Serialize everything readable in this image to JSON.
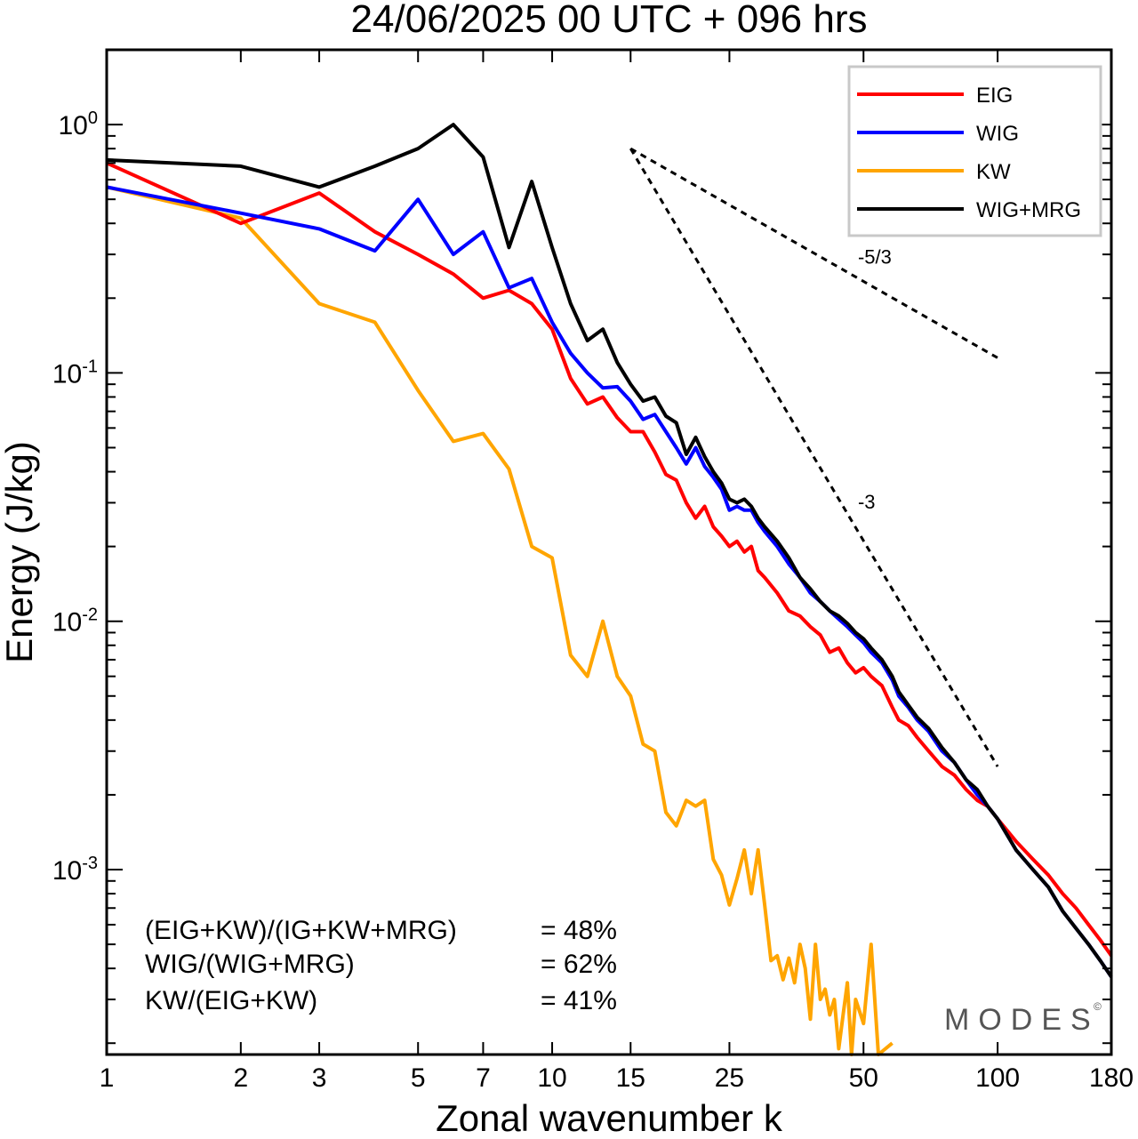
{
  "chart_data": {
    "type": "line",
    "title": "24/06/2025  00 UTC  + 096 hrs",
    "xlabel": "Zonal wavenumber k",
    "ylabel": "Energy (J/kg)",
    "xscale": "log",
    "yscale": "log",
    "xlim": [
      1,
      180
    ],
    "ylim": [
      0.00018,
      2.0
    ],
    "xticks": [
      1,
      2,
      3,
      5,
      7,
      10,
      15,
      25,
      50,
      100,
      180
    ],
    "xtick_labels": [
      "1",
      "2",
      "3",
      "5",
      "7",
      "10",
      "15",
      "25",
      "50",
      "100",
      "180"
    ],
    "yticks": [
      1,
      0.1,
      0.01,
      0.001
    ],
    "ytick_base": [
      "10",
      "10",
      "10",
      "10"
    ],
    "ytick_exp": [
      "0",
      "-1",
      "-2",
      "-3"
    ],
    "legend_position": "top-right",
    "series": [
      {
        "name": "EIG",
        "color": "#ff0000",
        "points": [
          [
            1,
            0.7
          ],
          [
            2,
            0.4
          ],
          [
            3,
            0.53
          ],
          [
            4,
            0.37
          ],
          [
            5,
            0.3
          ],
          [
            6,
            0.25
          ],
          [
            7,
            0.2
          ],
          [
            8,
            0.215
          ],
          [
            9,
            0.19
          ],
          [
            10,
            0.15
          ],
          [
            11,
            0.095
          ],
          [
            12,
            0.075
          ],
          [
            13,
            0.08
          ],
          [
            14,
            0.066
          ],
          [
            15,
            0.058
          ],
          [
            16,
            0.058
          ],
          [
            17,
            0.048
          ],
          [
            18,
            0.039
          ],
          [
            19,
            0.037
          ],
          [
            20,
            0.03
          ],
          [
            21,
            0.026
          ],
          [
            22,
            0.029
          ],
          [
            23,
            0.024
          ],
          [
            24,
            0.022
          ],
          [
            25,
            0.02
          ],
          [
            26,
            0.021
          ],
          [
            27,
            0.019
          ],
          [
            28,
            0.02
          ],
          [
            29,
            0.016
          ],
          [
            30,
            0.015
          ],
          [
            32,
            0.013
          ],
          [
            34,
            0.011
          ],
          [
            36,
            0.0105
          ],
          [
            38,
            0.0095
          ],
          [
            40,
            0.0088
          ],
          [
            42,
            0.0075
          ],
          [
            44,
            0.0078
          ],
          [
            46,
            0.0068
          ],
          [
            48,
            0.0062
          ],
          [
            50,
            0.0065
          ],
          [
            52,
            0.006
          ],
          [
            55,
            0.0055
          ],
          [
            58,
            0.0045
          ],
          [
            60,
            0.004
          ],
          [
            63,
            0.0038
          ],
          [
            66,
            0.0034
          ],
          [
            70,
            0.003
          ],
          [
            75,
            0.0026
          ],
          [
            80,
            0.0024
          ],
          [
            85,
            0.0021
          ],
          [
            90,
            0.0019
          ],
          [
            95,
            0.0018
          ],
          [
            100,
            0.0016
          ],
          [
            110,
            0.0013
          ],
          [
            120,
            0.0011
          ],
          [
            130,
            0.00095
          ],
          [
            140,
            0.0008
          ],
          [
            150,
            0.0007
          ],
          [
            160,
            0.0006
          ],
          [
            170,
            0.00052
          ],
          [
            180,
            0.00045
          ]
        ]
      },
      {
        "name": "WIG",
        "color": "#0000ff",
        "points": [
          [
            1,
            0.56
          ],
          [
            2,
            0.44
          ],
          [
            3,
            0.38
          ],
          [
            4,
            0.31
          ],
          [
            5,
            0.5
          ],
          [
            6,
            0.3
          ],
          [
            7,
            0.37
          ],
          [
            8,
            0.22
          ],
          [
            9,
            0.24
          ],
          [
            10,
            0.16
          ],
          [
            11,
            0.12
          ],
          [
            12,
            0.1
          ],
          [
            13,
            0.087
          ],
          [
            14,
            0.088
          ],
          [
            15,
            0.077
          ],
          [
            16,
            0.065
          ],
          [
            17,
            0.068
          ],
          [
            18,
            0.058
          ],
          [
            19,
            0.05
          ],
          [
            20,
            0.043
          ],
          [
            21,
            0.05
          ],
          [
            22,
            0.042
          ],
          [
            23,
            0.038
          ],
          [
            24,
            0.034
          ],
          [
            25,
            0.028
          ],
          [
            26,
            0.029
          ],
          [
            27,
            0.028
          ],
          [
            28,
            0.028
          ],
          [
            29,
            0.025
          ],
          [
            30,
            0.023
          ],
          [
            32,
            0.02
          ],
          [
            34,
            0.017
          ],
          [
            36,
            0.015
          ],
          [
            38,
            0.013
          ],
          [
            40,
            0.012
          ],
          [
            42,
            0.011
          ],
          [
            44,
            0.0102
          ],
          [
            46,
            0.0095
          ],
          [
            48,
            0.0088
          ],
          [
            50,
            0.0082
          ],
          [
            52,
            0.0075
          ],
          [
            55,
            0.0068
          ],
          [
            58,
            0.0058
          ],
          [
            60,
            0.005
          ],
          [
            63,
            0.0045
          ],
          [
            66,
            0.004
          ],
          [
            70,
            0.0036
          ],
          [
            75,
            0.003
          ],
          [
            80,
            0.0027
          ],
          [
            85,
            0.0023
          ],
          [
            90,
            0.002
          ],
          [
            95,
            0.0018
          ],
          [
            100,
            0.0016
          ],
          [
            110,
            0.0012
          ],
          [
            120,
            0.001
          ],
          [
            130,
            0.00085
          ],
          [
            140,
            0.00068
          ],
          [
            150,
            0.00058
          ],
          [
            160,
            0.0005
          ],
          [
            170,
            0.00043
          ],
          [
            180,
            0.00037
          ]
        ]
      },
      {
        "name": "KW",
        "color": "#ffa500",
        "points": [
          [
            1,
            0.56
          ],
          [
            2,
            0.42
          ],
          [
            3,
            0.19
          ],
          [
            4,
            0.16
          ],
          [
            5,
            0.085
          ],
          [
            6,
            0.053
          ],
          [
            7,
            0.057
          ],
          [
            8,
            0.041
          ],
          [
            9,
            0.02
          ],
          [
            10,
            0.018
          ],
          [
            11,
            0.0073
          ],
          [
            12,
            0.006
          ],
          [
            13,
            0.01
          ],
          [
            14,
            0.006
          ],
          [
            15,
            0.005
          ],
          [
            16,
            0.0032
          ],
          [
            17,
            0.003
          ],
          [
            18,
            0.0017
          ],
          [
            19,
            0.0015
          ],
          [
            20,
            0.0019
          ],
          [
            21,
            0.0018
          ],
          [
            22,
            0.0019
          ],
          [
            23,
            0.0011
          ],
          [
            24,
            0.00095
          ],
          [
            25,
            0.00072
          ],
          [
            26,
            0.00092
          ],
          [
            27,
            0.0012
          ],
          [
            28,
            0.0008
          ],
          [
            29,
            0.0012
          ],
          [
            30,
            0.00072
          ],
          [
            31,
            0.00043
          ],
          [
            32,
            0.00045
          ],
          [
            33,
            0.00036
          ],
          [
            34,
            0.00044
          ],
          [
            35,
            0.00035
          ],
          [
            36,
            0.0005
          ],
          [
            37,
            0.0004
          ],
          [
            38,
            0.00025
          ],
          [
            39,
            0.0005
          ],
          [
            40,
            0.0003
          ],
          [
            41,
            0.00033
          ],
          [
            42,
            0.00026
          ],
          [
            43,
            0.0003
          ],
          [
            44,
            0.00019
          ],
          [
            45,
            0.00026
          ],
          [
            46,
            0.00035
          ],
          [
            47,
            0.00018
          ],
          [
            48,
            0.0003
          ],
          [
            50,
            0.00024
          ],
          [
            52,
            0.0005
          ],
          [
            54,
            0.00018
          ],
          [
            58,
            0.0002
          ]
        ]
      },
      {
        "name": "WIG+MRG",
        "color": "#000000",
        "points": [
          [
            1,
            0.72
          ],
          [
            2,
            0.68
          ],
          [
            3,
            0.56
          ],
          [
            4,
            0.68
          ],
          [
            5,
            0.8
          ],
          [
            6,
            1.0
          ],
          [
            7,
            0.74
          ],
          [
            8,
            0.32
          ],
          [
            9,
            0.59
          ],
          [
            10,
            0.32
          ],
          [
            11,
            0.19
          ],
          [
            12,
            0.135
          ],
          [
            13,
            0.15
          ],
          [
            14,
            0.11
          ],
          [
            15,
            0.09
          ],
          [
            16,
            0.077
          ],
          [
            17,
            0.08
          ],
          [
            18,
            0.067
          ],
          [
            19,
            0.063
          ],
          [
            20,
            0.047
          ],
          [
            21,
            0.055
          ],
          [
            22,
            0.046
          ],
          [
            23,
            0.04
          ],
          [
            24,
            0.036
          ],
          [
            25,
            0.031
          ],
          [
            26,
            0.03
          ],
          [
            27,
            0.031
          ],
          [
            28,
            0.029
          ],
          [
            29,
            0.026
          ],
          [
            30,
            0.024
          ],
          [
            32,
            0.021
          ],
          [
            34,
            0.018
          ],
          [
            36,
            0.015
          ],
          [
            38,
            0.0135
          ],
          [
            40,
            0.012
          ],
          [
            42,
            0.011
          ],
          [
            44,
            0.0105
          ],
          [
            46,
            0.0098
          ],
          [
            48,
            0.009
          ],
          [
            50,
            0.0085
          ],
          [
            52,
            0.0078
          ],
          [
            55,
            0.007
          ],
          [
            58,
            0.006
          ],
          [
            60,
            0.0052
          ],
          [
            63,
            0.0046
          ],
          [
            66,
            0.0041
          ],
          [
            70,
            0.0037
          ],
          [
            75,
            0.0031
          ],
          [
            80,
            0.0027
          ],
          [
            85,
            0.0023
          ],
          [
            90,
            0.0021
          ],
          [
            95,
            0.0018
          ],
          [
            100,
            0.0016
          ],
          [
            110,
            0.0012
          ],
          [
            120,
            0.001
          ],
          [
            130,
            0.00085
          ],
          [
            140,
            0.00068
          ],
          [
            150,
            0.00058
          ],
          [
            160,
            0.0005
          ],
          [
            170,
            0.00043
          ],
          [
            180,
            0.00037
          ]
        ]
      }
    ],
    "reference_slopes": [
      {
        "label": "-5/3",
        "from": [
          15,
          0.8
        ],
        "to": [
          100,
          0.115
        ]
      },
      {
        "label": "-3",
        "from": [
          15,
          0.8
        ],
        "to": [
          100,
          0.0026
        ]
      }
    ],
    "annotations": [
      {
        "left": "(EIG+KW)/(IG+KW+MRG)",
        "right": "= 48%"
      },
      {
        "left": "WIG/(WIG+MRG)",
        "right": "= 62%"
      },
      {
        "left": "KW/(EIG+KW)",
        "right": "= 41%"
      }
    ],
    "watermark": "MODES",
    "watermark_symbol": "©"
  }
}
